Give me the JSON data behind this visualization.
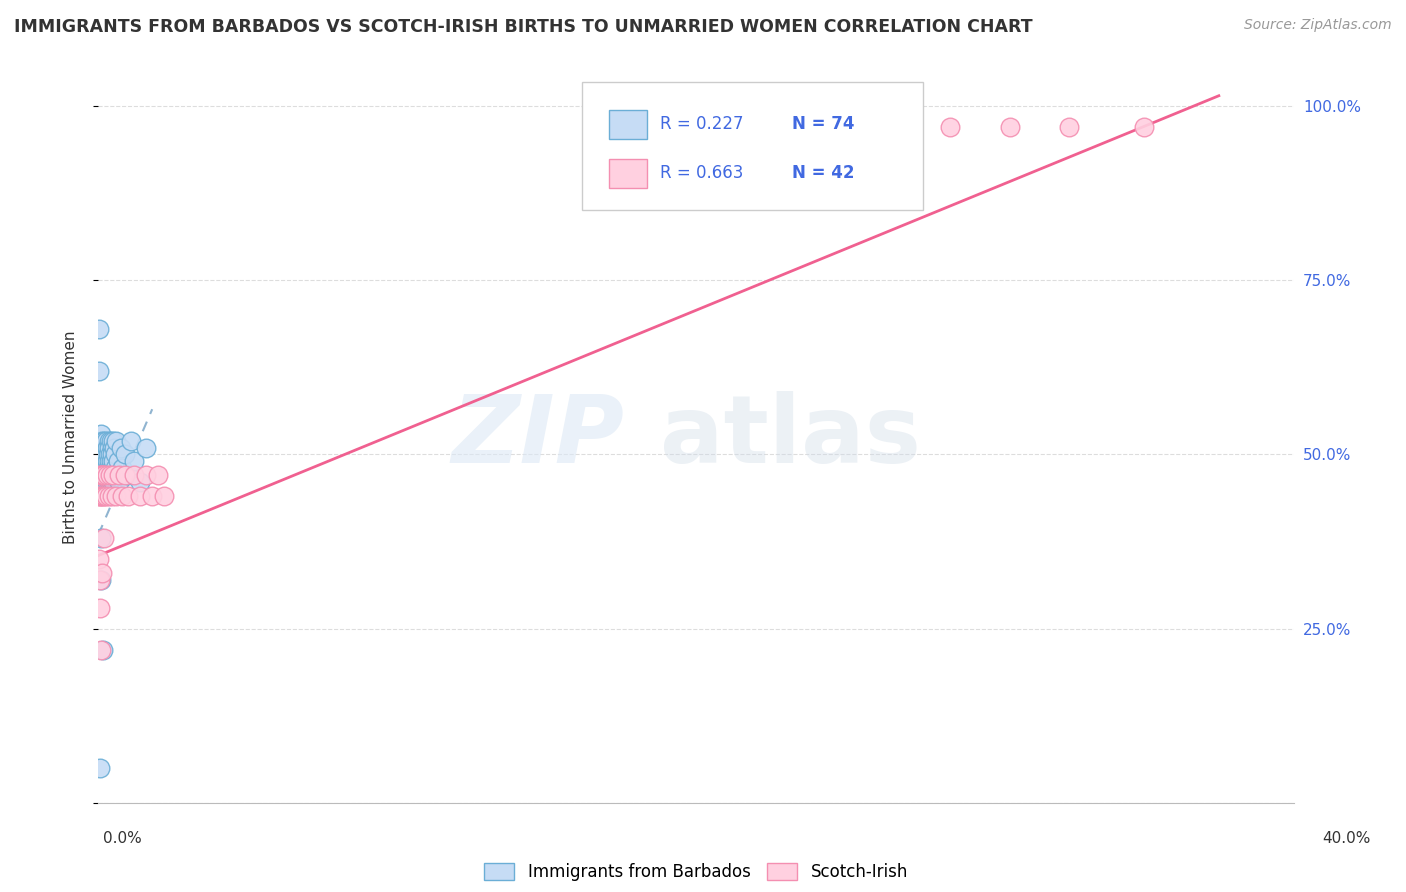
{
  "title": "IMMIGRANTS FROM BARBADOS VS SCOTCH-IRISH BIRTHS TO UNMARRIED WOMEN CORRELATION CHART",
  "source": "Source: ZipAtlas.com",
  "ylabel": "Births to Unmarried Women",
  "legend_label1": "Immigrants from Barbados",
  "legend_label2": "Scotch-Irish",
  "R1": 0.227,
  "N1": 74,
  "R2": 0.663,
  "N2": 42,
  "watermark_zip": "ZIP",
  "watermark_atlas": "atlas",
  "xlim": [
    0.0,
    0.4
  ],
  "ylim": [
    0.0,
    1.05
  ],
  "ytick_vals": [
    0.0,
    0.25,
    0.5,
    0.75,
    1.0
  ],
  "ytick_labels": [
    "",
    "25.0%",
    "50.0%",
    "75.0%",
    "100.0%"
  ],
  "blue_scatter_x": [
    0.0002,
    0.0003,
    0.0004,
    0.0005,
    0.0006,
    0.0007,
    0.0008,
    0.0009,
    0.001,
    0.001,
    0.0011,
    0.0012,
    0.0012,
    0.0013,
    0.0014,
    0.0015,
    0.0015,
    0.0016,
    0.0017,
    0.0018,
    0.0019,
    0.002,
    0.0021,
    0.0022,
    0.0023,
    0.0024,
    0.0025,
    0.0026,
    0.0027,
    0.0028,
    0.0029,
    0.003,
    0.0031,
    0.0032,
    0.0033,
    0.0034,
    0.0035,
    0.0036,
    0.0037,
    0.0038,
    0.0039,
    0.004,
    0.0041,
    0.0042,
    0.0043,
    0.0044,
    0.0045,
    0.0046,
    0.0047,
    0.0048,
    0.0049,
    0.005,
    0.0052,
    0.0054,
    0.0056,
    0.0058,
    0.006,
    0.0065,
    0.007,
    0.0075,
    0.008,
    0.009,
    0.01,
    0.011,
    0.012,
    0.014,
    0.016,
    0.0002,
    0.0003,
    0.0005,
    0.0008,
    0.001,
    0.0015
  ],
  "blue_scatter_y": [
    0.48,
    0.5,
    0.47,
    0.52,
    0.49,
    0.51,
    0.48,
    0.5,
    0.46,
    0.53,
    0.48,
    0.5,
    0.47,
    0.52,
    0.49,
    0.46,
    0.51,
    0.48,
    0.5,
    0.47,
    0.52,
    0.45,
    0.49,
    0.47,
    0.51,
    0.48,
    0.5,
    0.47,
    0.52,
    0.49,
    0.46,
    0.51,
    0.48,
    0.5,
    0.47,
    0.52,
    0.49,
    0.46,
    0.51,
    0.48,
    0.5,
    0.47,
    0.52,
    0.49,
    0.46,
    0.51,
    0.48,
    0.5,
    0.47,
    0.52,
    0.49,
    0.46,
    0.51,
    0.48,
    0.5,
    0.47,
    0.52,
    0.49,
    0.46,
    0.51,
    0.48,
    0.5,
    0.47,
    0.52,
    0.49,
    0.46,
    0.51,
    0.62,
    0.68,
    0.05,
    0.32,
    0.38,
    0.22
  ],
  "pink_scatter_x": [
    0.0002,
    0.0004,
    0.0006,
    0.0008,
    0.001,
    0.0012,
    0.0014,
    0.0016,
    0.0018,
    0.002,
    0.0025,
    0.003,
    0.0035,
    0.004,
    0.0045,
    0.005,
    0.006,
    0.007,
    0.008,
    0.009,
    0.01,
    0.012,
    0.014,
    0.016,
    0.018,
    0.02,
    0.022,
    0.195,
    0.22,
    0.245,
    0.265,
    0.285,
    0.305,
    0.325,
    0.35,
    0.205,
    0.23,
    0.0002,
    0.0004,
    0.0006,
    0.0008,
    0.0012,
    0.0018
  ],
  "pink_scatter_y": [
    0.44,
    0.47,
    0.44,
    0.47,
    0.44,
    0.47,
    0.44,
    0.47,
    0.44,
    0.47,
    0.44,
    0.47,
    0.44,
    0.47,
    0.44,
    0.47,
    0.44,
    0.47,
    0.44,
    0.47,
    0.44,
    0.47,
    0.44,
    0.47,
    0.44,
    0.47,
    0.44,
    0.97,
    0.97,
    0.97,
    0.97,
    0.97,
    0.97,
    0.97,
    0.97,
    0.91,
    0.91,
    0.35,
    0.32,
    0.28,
    0.22,
    0.33,
    0.38
  ],
  "blue_trend_x": [
    0.0,
    0.018
  ],
  "blue_trend_y": [
    0.385,
    0.565
  ],
  "pink_trend_x": [
    0.0,
    0.375
  ],
  "pink_trend_y": [
    0.355,
    1.015
  ],
  "background_color": "#ffffff"
}
